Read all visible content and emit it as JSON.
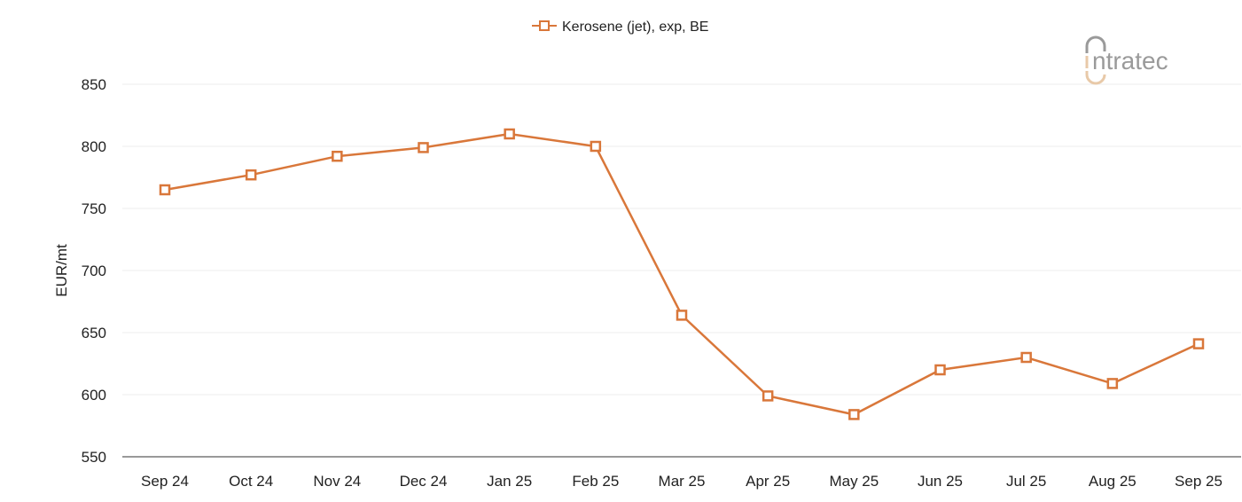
{
  "chart_data": {
    "type": "line",
    "title": "",
    "xlabel": "",
    "ylabel": "EUR/mt",
    "ylim": [
      550,
      850
    ],
    "yticks": [
      550,
      600,
      650,
      700,
      750,
      800,
      850
    ],
    "grid": true,
    "legend_placement": "top-center",
    "categories": [
      "Sep 24",
      "Oct 24",
      "Nov 24",
      "Dec 24",
      "Jan 25",
      "Feb 25",
      "Mar 25",
      "Apr 25",
      "May 25",
      "Jun 25",
      "Jul 25",
      "Aug 25",
      "Sep 25"
    ],
    "series": [
      {
        "name": "Kerosene (jet), exp, BE",
        "color": "#d9773a",
        "marker": "square-open",
        "values": [
          765,
          777,
          792,
          799,
          810,
          800,
          664,
          599,
          584,
          620,
          630,
          609,
          641
        ]
      }
    ]
  },
  "logo": {
    "text": "intratec",
    "colors": [
      "#9a9a9a",
      "#e8c9a8"
    ]
  }
}
